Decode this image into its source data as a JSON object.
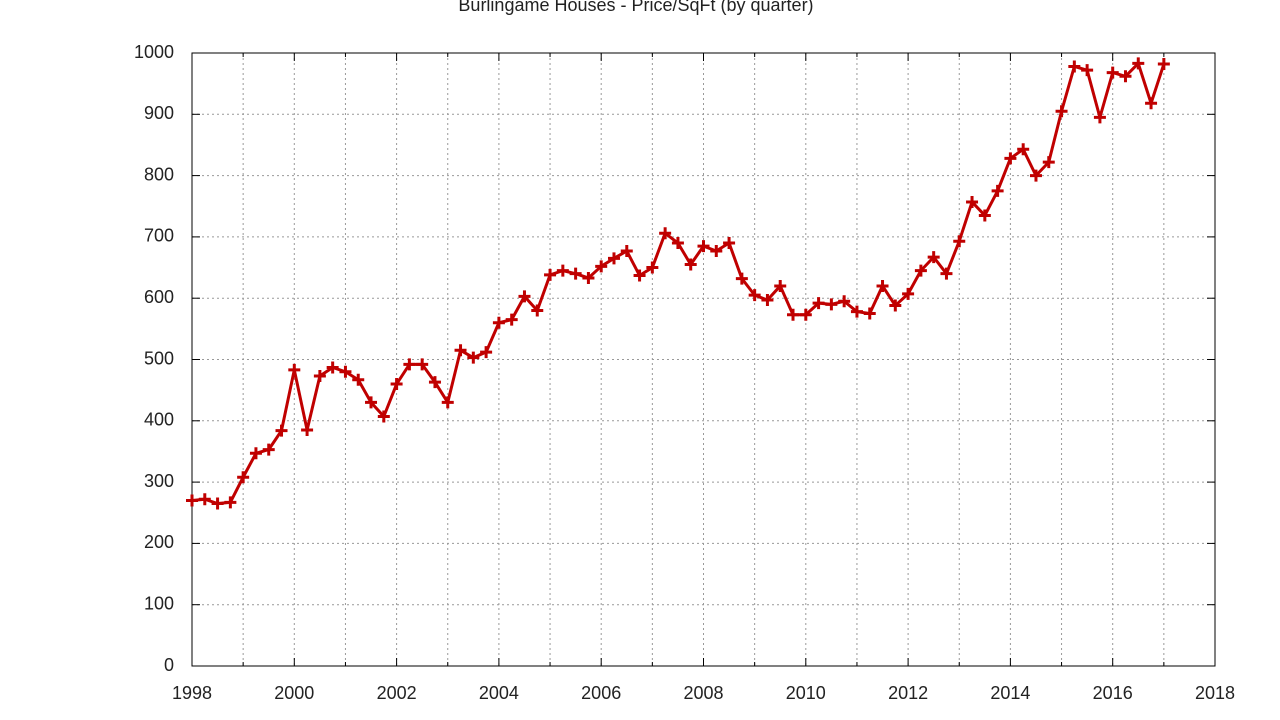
{
  "chart_data": {
    "type": "line",
    "title": "Burlingame Houses - Price/SqFt (by quarter)",
    "x": [
      1998,
      1998.25,
      1998.5,
      1998.75,
      1999,
      1999.25,
      1999.5,
      1999.75,
      2000,
      2000.25,
      2000.5,
      2000.75,
      2001,
      2001.25,
      2001.5,
      2001.75,
      2002,
      2002.25,
      2002.5,
      2002.75,
      2003,
      2003.25,
      2003.5,
      2003.75,
      2004,
      2004.25,
      2004.5,
      2004.75,
      2005,
      2005.25,
      2005.5,
      2005.75,
      2006,
      2006.25,
      2006.5,
      2006.75,
      2007,
      2007.25,
      2007.5,
      2007.75,
      2008,
      2008.25,
      2008.5,
      2008.75,
      2009,
      2009.25,
      2009.5,
      2009.75,
      2010,
      2010.25,
      2010.5,
      2010.75,
      2011,
      2011.25,
      2011.5,
      2011.75,
      2012,
      2012.25,
      2012.5,
      2012.75,
      2013,
      2013.25,
      2013.5,
      2013.75,
      2014,
      2014.25,
      2014.5,
      2014.75,
      2015,
      2015.25,
      2015.5,
      2015.75,
      2016,
      2016.25,
      2016.5,
      2016.75,
      2017
    ],
    "series": [
      {
        "color": "#c00000",
        "values": [
          270,
          272,
          265,
          267,
          308,
          347,
          353,
          384,
          483,
          385,
          473,
          487,
          480,
          467,
          430,
          407,
          460,
          492,
          492,
          463,
          430,
          515,
          503,
          512,
          560,
          565,
          603,
          580,
          638,
          645,
          640,
          633,
          652,
          665,
          677,
          637,
          650,
          706,
          690,
          655,
          685,
          677,
          690,
          632,
          605,
          597,
          620,
          573,
          573,
          592,
          590,
          595,
          578,
          575,
          620,
          588,
          607,
          645,
          667,
          640,
          693,
          757,
          735,
          775,
          828,
          843,
          800,
          822,
          905,
          978,
          972,
          895,
          968,
          962,
          983,
          918,
          982
        ]
      }
    ],
    "xlim": [
      1998,
      2018
    ],
    "xticks": [
      1998,
      2000,
      2002,
      2004,
      2006,
      2008,
      2010,
      2012,
      2014,
      2016,
      2018
    ],
    "xminorticks": [
      1999,
      2001,
      2003,
      2005,
      2007,
      2009,
      2011,
      2013,
      2015,
      2017
    ],
    "ylim": [
      0,
      1000
    ],
    "yticks": [
      0,
      100,
      200,
      300,
      400,
      500,
      600,
      700,
      800,
      900,
      1000
    ],
    "grid": true
  }
}
